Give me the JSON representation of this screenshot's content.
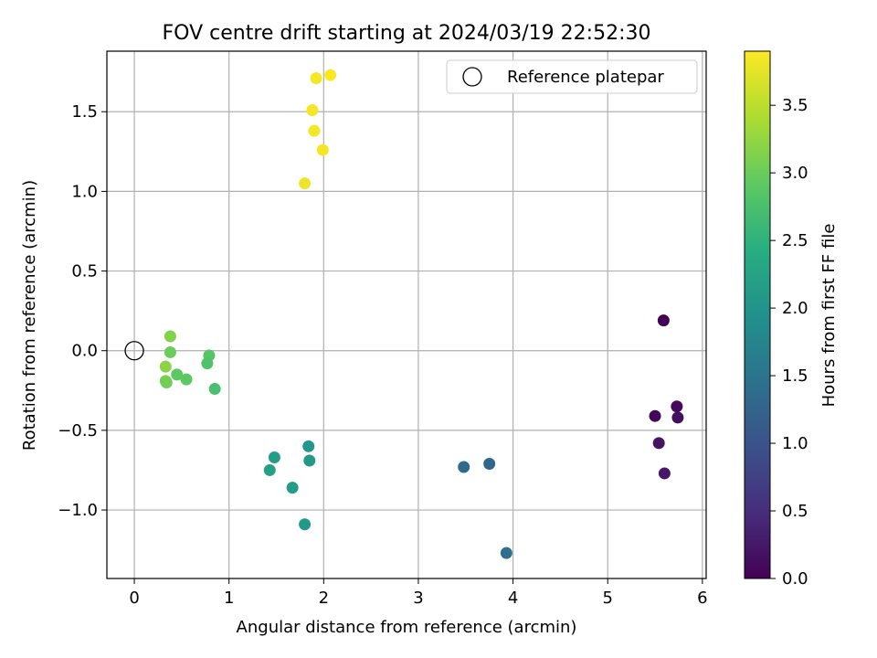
{
  "chart_data": {
    "type": "scatter",
    "title": "FOV centre drift starting at 2024/03/19 22:52:30",
    "xlabel": "Angular distance from reference (arcmin)",
    "ylabel": "Rotation from reference (arcmin)",
    "xlim": [
      -0.29,
      6.04
    ],
    "ylim": [
      -1.43,
      1.88
    ],
    "xticks": [
      0,
      1,
      2,
      3,
      4,
      5,
      6
    ],
    "yticks": [
      -1.0,
      -0.5,
      0.0,
      0.5,
      1.0,
      1.5
    ],
    "xtick_labels": [
      "0",
      "1",
      "2",
      "3",
      "4",
      "5",
      "6"
    ],
    "ytick_labels": [
      "−1.0",
      "−0.5",
      "0.0",
      "0.5",
      "1.0",
      "1.5"
    ],
    "grid": true,
    "legend": {
      "placement": "top-right",
      "entries": [
        {
          "label": "Reference platepar",
          "marker": "open-circle"
        }
      ]
    },
    "reference_point": {
      "x": 0.0,
      "y": 0.0
    },
    "colorbar": {
      "label": "Hours from first FF file",
      "colormap": "viridis",
      "range": [
        0.0,
        3.9
      ],
      "ticks": [
        0.0,
        0.5,
        1.0,
        1.5,
        2.0,
        2.5,
        3.0,
        3.5
      ],
      "tick_labels": [
        "0.0",
        "0.5",
        "1.0",
        "1.5",
        "2.0",
        "2.5",
        "3.0",
        "3.5"
      ]
    },
    "points": [
      {
        "x": 5.59,
        "y": 0.19,
        "hours": 0.0
      },
      {
        "x": 5.5,
        "y": -0.41,
        "hours": 0.05
      },
      {
        "x": 5.73,
        "y": -0.35,
        "hours": 0.1
      },
      {
        "x": 5.74,
        "y": -0.42,
        "hours": 0.15
      },
      {
        "x": 5.54,
        "y": -0.58,
        "hours": 0.2
      },
      {
        "x": 5.6,
        "y": -0.77,
        "hours": 0.25
      },
      {
        "x": 3.75,
        "y": -0.71,
        "hours": 1.3
      },
      {
        "x": 3.48,
        "y": -0.73,
        "hours": 1.35
      },
      {
        "x": 3.93,
        "y": -1.27,
        "hours": 1.4
      },
      {
        "x": 1.84,
        "y": -0.6,
        "hours": 2.05
      },
      {
        "x": 1.85,
        "y": -0.69,
        "hours": 2.1
      },
      {
        "x": 1.48,
        "y": -0.67,
        "hours": 2.15
      },
      {
        "x": 1.43,
        "y": -0.75,
        "hours": 2.2
      },
      {
        "x": 1.67,
        "y": -0.86,
        "hours": 2.15
      },
      {
        "x": 1.8,
        "y": -1.09,
        "hours": 2.1
      },
      {
        "x": 0.85,
        "y": -0.24,
        "hours": 2.75
      },
      {
        "x": 0.79,
        "y": -0.03,
        "hours": 2.85
      },
      {
        "x": 0.77,
        "y": -0.08,
        "hours": 2.8
      },
      {
        "x": 0.55,
        "y": -0.18,
        "hours": 2.9
      },
      {
        "x": 0.45,
        "y": -0.15,
        "hours": 2.9
      },
      {
        "x": 0.38,
        "y": -0.01,
        "hours": 3.0
      },
      {
        "x": 0.38,
        "y": 0.09,
        "hours": 3.15
      },
      {
        "x": 0.33,
        "y": -0.1,
        "hours": 3.2
      },
      {
        "x": 0.33,
        "y": -0.19,
        "hours": 3.1
      },
      {
        "x": 0.34,
        "y": -0.2,
        "hours": 3.05
      },
      {
        "x": 2.07,
        "y": 1.73,
        "hours": 3.9
      },
      {
        "x": 1.92,
        "y": 1.71,
        "hours": 3.85
      },
      {
        "x": 1.88,
        "y": 1.51,
        "hours": 3.85
      },
      {
        "x": 1.9,
        "y": 1.38,
        "hours": 3.85
      },
      {
        "x": 1.99,
        "y": 1.26,
        "hours": 3.85
      },
      {
        "x": 1.8,
        "y": 1.05,
        "hours": 3.8
      }
    ]
  }
}
